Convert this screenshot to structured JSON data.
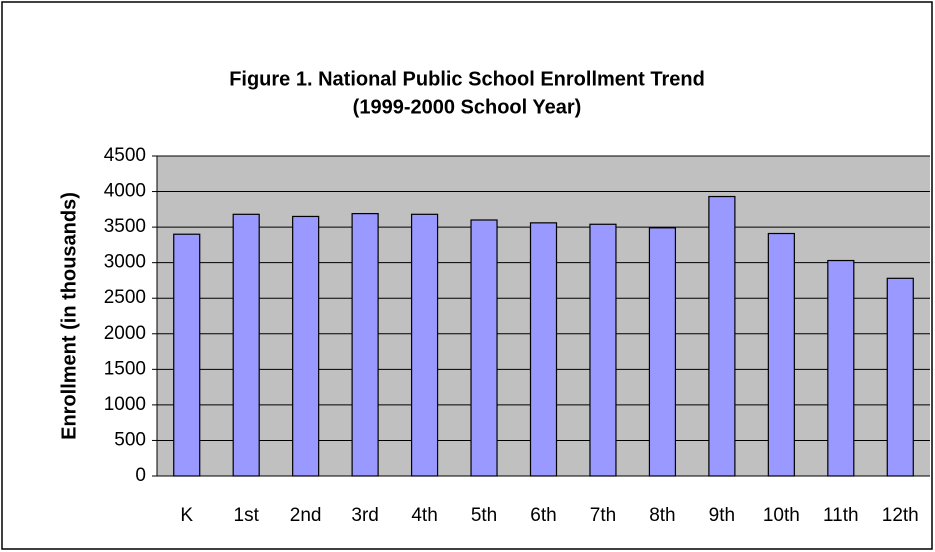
{
  "chart_data": {
    "type": "bar",
    "title": "Figure 1. National Public School Enrollment Trend",
    "subtitle": "(1999-2000 School Year)",
    "y_label": "Enrollment (in thousands)",
    "categories": [
      "K",
      "1st",
      "2nd",
      "3rd",
      "4th",
      "5th",
      "6th",
      "7th",
      "8th",
      "9th",
      "10th",
      "11th",
      "12th"
    ],
    "values": [
      3400,
      3680,
      3650,
      3690,
      3680,
      3600,
      3560,
      3540,
      3490,
      3930,
      3410,
      3030,
      2780
    ],
    "color": "#9999ff",
    "ylim": [
      0,
      4500
    ],
    "yticks": [
      0,
      500,
      1000,
      1500,
      2000,
      2500,
      3000,
      3500,
      4000,
      4500
    ],
    "grid": true
  }
}
